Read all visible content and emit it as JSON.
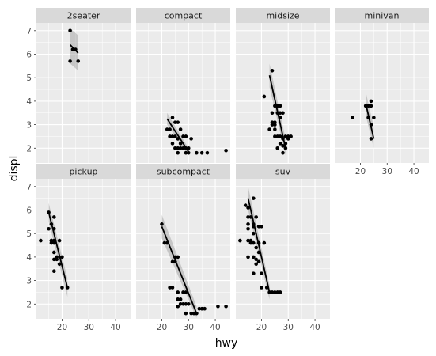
{
  "chart_data": {
    "type": "scatter",
    "facet_by": "class",
    "xlabel": "hwy",
    "ylabel": "displ",
    "xlim": [
      10.4,
      45.6
    ],
    "ylim": [
      1.37,
      7.33
    ],
    "x_ticks": [
      20,
      30,
      40
    ],
    "y_ticks": [
      2,
      3,
      4,
      5,
      6,
      7
    ],
    "grid": true,
    "trend": "linear fit with confidence band",
    "colors": {
      "panel": "#ebebeb",
      "grid_major": "#ffffff",
      "strip": "#d9d9d9",
      "points": "#000000",
      "band": "#999999"
    },
    "panels": [
      {
        "label": "2seater",
        "points": [
          [
            23,
            7.0
          ],
          [
            24,
            6.2
          ],
          [
            25,
            6.2
          ],
          [
            26,
            5.7
          ],
          [
            23,
            5.7
          ]
        ],
        "fit": {
          "x": [
            23,
            26
          ],
          "y": [
            6.4,
            6.05
          ],
          "band_lo": [
            5.6,
            5.3
          ],
          "band_hi": [
            7.1,
            6.8
          ]
        }
      },
      {
        "label": "compact",
        "points": [
          [
            24,
            3.3
          ],
          [
            26,
            3.1
          ],
          [
            27,
            2.8
          ],
          [
            23,
            2.8
          ],
          [
            25,
            2.5
          ],
          [
            24,
            2.2
          ],
          [
            26,
            2.0
          ],
          [
            28,
            2.0
          ],
          [
            29,
            1.8
          ],
          [
            33,
            1.8
          ],
          [
            35,
            1.8
          ],
          [
            37,
            1.8
          ],
          [
            44,
            1.9
          ],
          [
            22,
            2.8
          ],
          [
            25,
            2.0
          ],
          [
            27,
            2.2
          ],
          [
            29,
            2.5
          ],
          [
            30,
            2.0
          ],
          [
            31,
            2.4
          ],
          [
            26,
            1.8
          ],
          [
            24,
            2.5
          ],
          [
            25,
            3.1
          ],
          [
            28,
            2.5
          ],
          [
            27,
            2.0
          ],
          [
            26,
            2.4
          ],
          [
            23,
            2.5
          ],
          [
            30,
            1.8
          ],
          [
            29,
            2.0
          ]
        ],
        "fit": {
          "x": [
            22,
            30
          ],
          "y": [
            3.25,
            1.85
          ],
          "band_lo": [
            3.0,
            1.7
          ],
          "band_hi": [
            3.5,
            2.0
          ]
        }
      },
      {
        "label": "midsize",
        "points": [
          [
            24,
            5.3
          ],
          [
            21,
            4.2
          ],
          [
            26,
            3.8
          ],
          [
            27,
            3.8
          ],
          [
            25,
            3.8
          ],
          [
            26,
            3.5
          ],
          [
            24,
            3.5
          ],
          [
            27,
            3.5
          ],
          [
            28,
            3.5
          ],
          [
            27,
            3.3
          ],
          [
            24,
            3.1
          ],
          [
            25,
            3.1
          ],
          [
            25,
            3.0
          ],
          [
            25,
            2.8
          ],
          [
            23,
            2.8
          ],
          [
            26,
            2.5
          ],
          [
            27,
            2.5
          ],
          [
            29,
            2.5
          ],
          [
            30,
            2.5
          ],
          [
            31,
            2.5
          ],
          [
            28,
            2.4
          ],
          [
            27,
            2.2
          ],
          [
            28,
            2.1
          ],
          [
            29,
            2.0
          ],
          [
            26,
            2.0
          ],
          [
            28,
            1.8
          ],
          [
            29,
            2.2
          ],
          [
            30,
            2.4
          ],
          [
            24,
            3.0
          ],
          [
            25,
            2.5
          ]
        ],
        "fit": {
          "x": [
            23,
            29
          ],
          "y": [
            5.1,
            2.0
          ],
          "band_lo": [
            4.6,
            1.7
          ],
          "band_hi": [
            5.6,
            2.4
          ]
        }
      },
      {
        "label": "minivan",
        "points": [
          [
            17,
            3.3
          ],
          [
            22,
            3.8
          ],
          [
            23,
            3.8
          ],
          [
            24,
            4.0
          ],
          [
            24,
            3.8
          ],
          [
            23,
            3.3
          ],
          [
            25,
            3.3
          ],
          [
            24,
            3.0
          ],
          [
            24,
            2.4
          ],
          [
            22,
            3.8
          ]
        ],
        "fit": {
          "x": [
            22,
            25
          ],
          "y": [
            3.9,
            2.4
          ],
          "band_lo": [
            3.4,
            2.0
          ],
          "band_hi": [
            4.4,
            2.9
          ]
        }
      },
      {
        "label": "pickup",
        "points": [
          [
            12,
            4.7
          ],
          [
            15,
            5.9
          ],
          [
            17,
            5.7
          ],
          [
            16,
            5.4
          ],
          [
            17,
            5.2
          ],
          [
            15,
            5.2
          ],
          [
            16,
            4.7
          ],
          [
            17,
            4.7
          ],
          [
            19,
            4.7
          ],
          [
            16,
            4.6
          ],
          [
            17,
            4.6
          ],
          [
            17,
            4.2
          ],
          [
            18,
            4.0
          ],
          [
            20,
            4.0
          ],
          [
            17,
            3.9
          ],
          [
            18,
            3.9
          ],
          [
            19,
            3.7
          ],
          [
            17,
            3.4
          ],
          [
            20,
            2.7
          ],
          [
            22,
            2.7
          ],
          [
            16,
            4.7
          ]
        ],
        "fit": {
          "x": [
            15,
            22
          ],
          "y": [
            5.9,
            2.7
          ],
          "band_lo": [
            5.5,
            2.3
          ],
          "band_hi": [
            6.3,
            3.1
          ]
        }
      },
      {
        "label": "subcompact",
        "points": [
          [
            20,
            5.4
          ],
          [
            21,
            4.6
          ],
          [
            22,
            4.6
          ],
          [
            25,
            4.0
          ],
          [
            26,
            4.0
          ],
          [
            24,
            3.8
          ],
          [
            25,
            3.8
          ],
          [
            23,
            2.7
          ],
          [
            24,
            2.7
          ],
          [
            26,
            2.5
          ],
          [
            28,
            2.5
          ],
          [
            29,
            2.5
          ],
          [
            26,
            2.2
          ],
          [
            27,
            2.0
          ],
          [
            28,
            2.0
          ],
          [
            29,
            2.0
          ],
          [
            30,
            2.0
          ],
          [
            26,
            1.9
          ],
          [
            29,
            1.6
          ],
          [
            32,
            1.6
          ],
          [
            33,
            1.6
          ],
          [
            35,
            1.8
          ],
          [
            36,
            1.8
          ],
          [
            41,
            1.9
          ],
          [
            44,
            1.9
          ],
          [
            34,
            1.8
          ],
          [
            31,
            1.6
          ],
          [
            27,
            2.2
          ]
        ],
        "fit": {
          "x": [
            20,
            33
          ],
          "y": [
            5.3,
            1.6
          ],
          "band_lo": [
            4.8,
            1.4
          ],
          "band_hi": [
            5.8,
            1.9
          ]
        }
      },
      {
        "label": "suv",
        "points": [
          [
            12,
            4.7
          ],
          [
            14,
            6.2
          ],
          [
            15,
            6.1
          ],
          [
            17,
            6.5
          ],
          [
            15,
            5.7
          ],
          [
            16,
            5.7
          ],
          [
            18,
            5.7
          ],
          [
            15,
            5.4
          ],
          [
            17,
            5.4
          ],
          [
            19,
            5.3
          ],
          [
            17,
            5.3
          ],
          [
            20,
            5.3
          ],
          [
            15,
            5.2
          ],
          [
            17,
            5.0
          ],
          [
            15,
            4.7
          ],
          [
            17,
            4.6
          ],
          [
            19,
            4.6
          ],
          [
            16,
            4.6
          ],
          [
            18,
            4.4
          ],
          [
            19,
            4.2
          ],
          [
            15,
            4.0
          ],
          [
            17,
            4.0
          ],
          [
            18,
            3.7
          ],
          [
            19,
            3.8
          ],
          [
            17,
            3.3
          ],
          [
            20,
            3.3
          ],
          [
            20,
            2.7
          ],
          [
            22,
            2.7
          ],
          [
            24,
            2.5
          ],
          [
            25,
            2.5
          ],
          [
            26,
            2.5
          ],
          [
            27,
            2.5
          ],
          [
            23,
            2.5
          ],
          [
            21,
            4.6
          ],
          [
            18,
            3.9
          ],
          [
            16,
            4.7
          ]
        ],
        "fit": {
          "x": [
            15,
            23
          ],
          "y": [
            6.5,
            2.5
          ],
          "band_lo": [
            6.0,
            2.2
          ],
          "band_hi": [
            7.0,
            2.8
          ]
        }
      }
    ]
  }
}
